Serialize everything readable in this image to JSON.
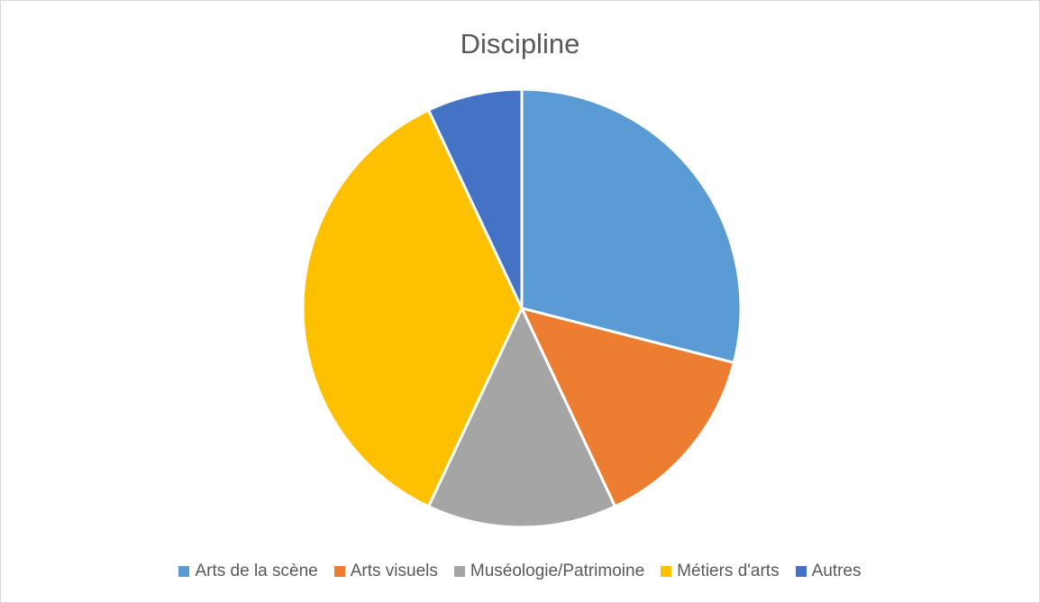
{
  "chart_data": {
    "type": "pie",
    "title": "Discipline",
    "slices": [
      {
        "label": "Arts de la scène",
        "value": 29,
        "color": "#5b9bd5"
      },
      {
        "label": "Arts visuels",
        "value": 14,
        "color": "#ed7d31"
      },
      {
        "label": "Muséologie/Patrimoine",
        "value": 14,
        "color": "#a5a5a5"
      },
      {
        "label": "Métiers d'arts",
        "value": 36,
        "color": "#ffc000"
      },
      {
        "label": "Autres",
        "value": 7,
        "color": "#4472c4"
      }
    ],
    "legend_position": "bottom",
    "start_angle": "top, clockwise"
  }
}
